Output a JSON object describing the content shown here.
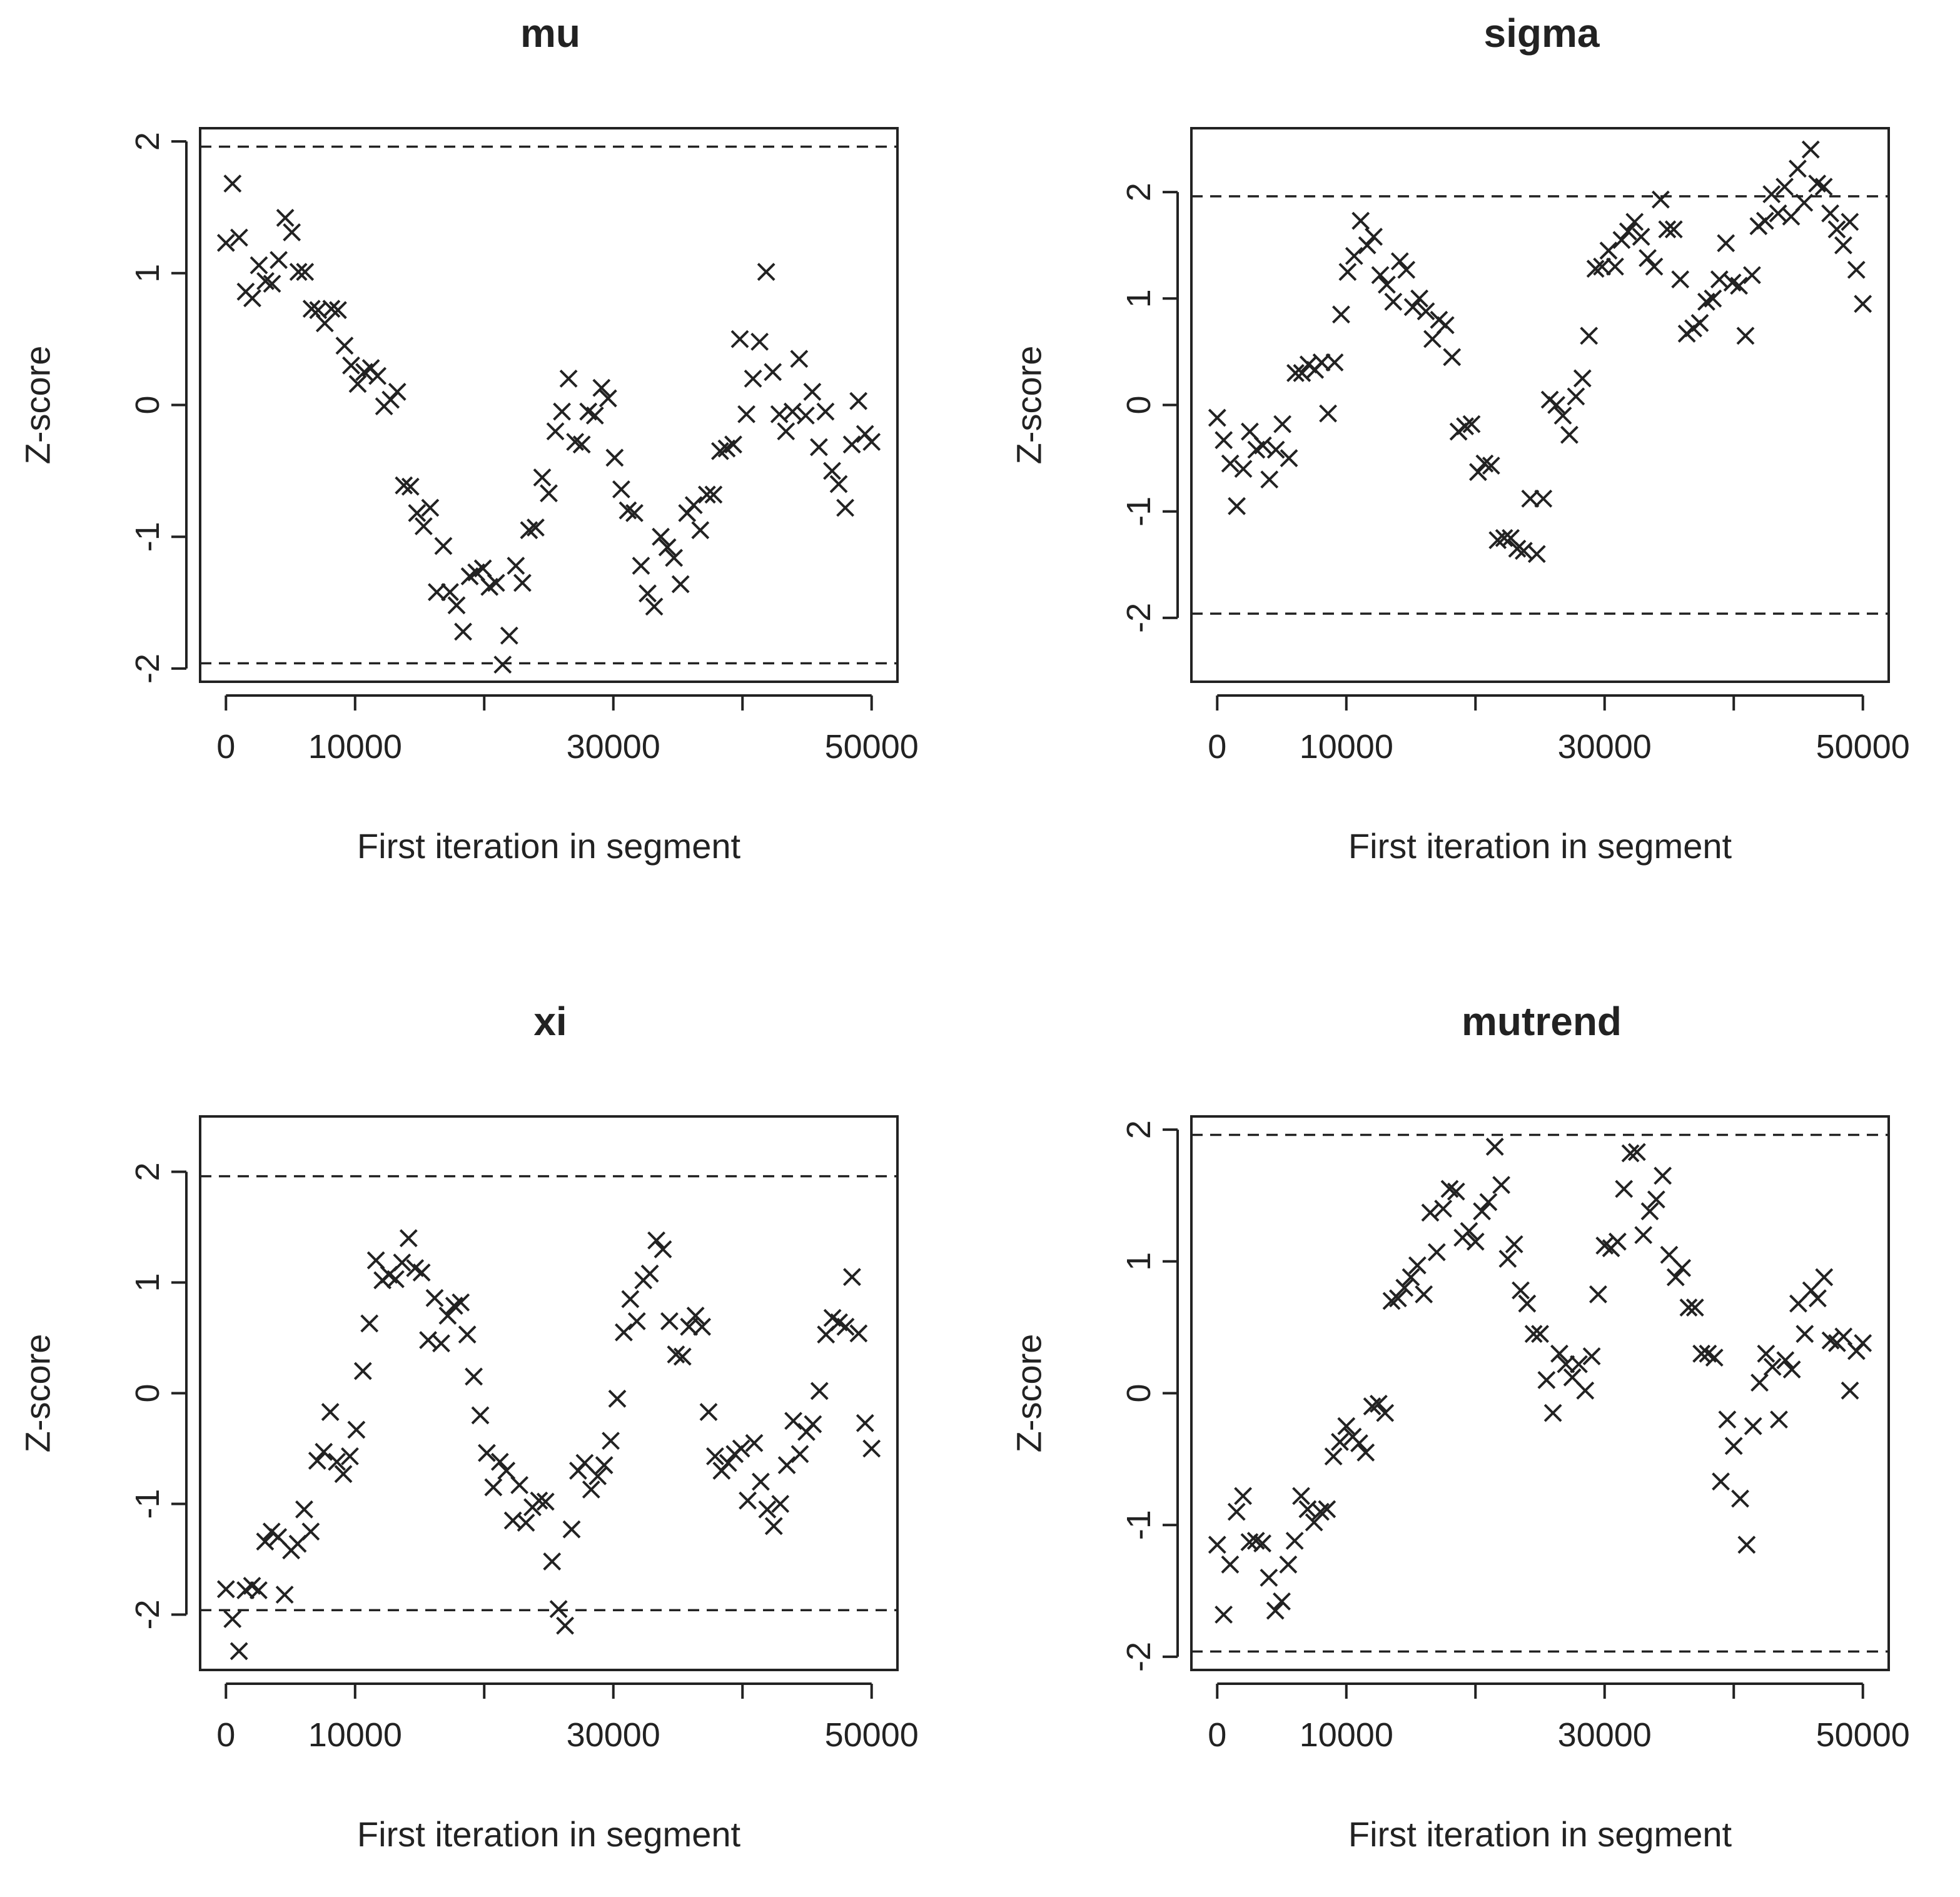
{
  "chart_data": [
    {
      "type": "scatter",
      "title": "mu",
      "xlabel": "First iteration in segment",
      "ylabel": "Z-score",
      "xlim": [
        -2000,
        52000
      ],
      "ylim": [
        -2.1,
        2.1
      ],
      "xticks": [
        0,
        10000,
        20000,
        30000,
        40000,
        50000
      ],
      "xtick_labels": [
        "0",
        "10000",
        "",
        "30000",
        "",
        "50000"
      ],
      "yticks": [
        -2,
        -1,
        0,
        1,
        2
      ],
      "ytick_labels": [
        "-2",
        "-1",
        "0",
        "1",
        "2"
      ],
      "hlines": [
        1.96,
        -1.96
      ],
      "marker": "x",
      "y": [
        1.23,
        1.68,
        1.27,
        0.86,
        0.81,
        1.06,
        0.94,
        0.92,
        1.1,
        1.42,
        1.31,
        1.01,
        1.01,
        0.73,
        0.72,
        0.62,
        0.73,
        0.72,
        0.45,
        0.3,
        0.16,
        0.25,
        0.28,
        0.22,
        -0.01,
        0.04,
        0.1,
        -0.61,
        -0.62,
        -0.82,
        -0.92,
        -0.78,
        -1.42,
        -1.07,
        -1.42,
        -1.52,
        -1.72,
        -1.3,
        -1.27,
        -1.24,
        -1.38,
        -1.35,
        -1.97,
        -1.75,
        -1.22,
        -1.35,
        -0.95,
        -0.93,
        -0.55,
        -0.67,
        -0.2,
        -0.05,
        0.2,
        -0.28,
        -0.3,
        -0.05,
        -0.08,
        0.13,
        0.05,
        -0.4,
        -0.64,
        -0.8,
        -0.82,
        -1.22,
        -1.43,
        -1.53,
        -1.0,
        -1.08,
        -1.16,
        -1.36,
        -0.82,
        -0.76,
        -0.95,
        -0.68,
        -0.68,
        -0.35,
        -0.33,
        -0.3,
        0.5,
        -0.07,
        0.2,
        0.48,
        1.01,
        0.25,
        -0.07,
        -0.2,
        -0.05,
        0.35,
        -0.08,
        0.1,
        -0.32,
        -0.05,
        -0.5,
        -0.6,
        -0.78,
        -0.3,
        0.03,
        -0.22,
        -0.28
      ]
    },
    {
      "type": "scatter",
      "title": "sigma",
      "xlabel": "First iteration in segment",
      "ylabel": "Z-score",
      "xlim": [
        -2000,
        52000
      ],
      "ylim": [
        -2.6,
        2.6
      ],
      "xticks": [
        0,
        10000,
        20000,
        30000,
        40000,
        50000
      ],
      "xtick_labels": [
        "0",
        "10000",
        "",
        "30000",
        "",
        "50000"
      ],
      "yticks": [
        -2,
        -1,
        0,
        1,
        2
      ],
      "ytick_labels": [
        "-2",
        "-1",
        "0",
        "1",
        "2"
      ],
      "hlines": [
        1.96,
        -1.96
      ],
      "marker": "x",
      "y": [
        -0.12,
        -0.33,
        -0.55,
        -0.95,
        -0.6,
        -0.25,
        -0.42,
        -0.38,
        -0.7,
        -0.42,
        -0.18,
        -0.5,
        0.3,
        0.3,
        0.38,
        0.33,
        0.4,
        -0.08,
        0.4,
        0.85,
        1.25,
        1.4,
        1.73,
        1.5,
        1.58,
        1.22,
        1.13,
        0.97,
        1.35,
        1.27,
        0.92,
        1.0,
        0.88,
        0.62,
        0.8,
        0.75,
        0.45,
        -0.25,
        -0.2,
        -0.18,
        -0.63,
        -0.55,
        -0.57,
        -1.27,
        -1.25,
        -1.25,
        -1.35,
        -1.37,
        -0.88,
        -1.4,
        -0.88,
        0.05,
        0.0,
        -0.1,
        -0.28,
        0.08,
        0.25,
        0.65,
        1.28,
        1.3,
        1.45,
        1.3,
        1.55,
        1.63,
        1.72,
        1.58,
        1.38,
        1.3,
        1.93,
        1.65,
        1.65,
        1.18,
        0.67,
        0.72,
        0.77,
        0.97,
        1.0,
        1.18,
        1.52,
        1.15,
        1.12,
        0.65,
        1.22,
        1.68,
        1.73,
        1.98,
        1.8,
        2.05,
        1.77,
        2.22,
        1.9,
        2.4,
        2.08,
        2.05,
        1.8,
        1.65,
        1.5,
        1.72,
        1.27,
        0.95
      ]
    },
    {
      "type": "scatter",
      "title": "xi",
      "xlabel": "First iteration in segment",
      "ylabel": "Z-score",
      "xlim": [
        -2000,
        52000
      ],
      "ylim": [
        -2.5,
        2.5
      ],
      "xticks": [
        0,
        10000,
        20000,
        30000,
        40000,
        50000
      ],
      "xtick_labels": [
        "0",
        "10000",
        "",
        "30000",
        "",
        "50000"
      ],
      "yticks": [
        -2,
        -1,
        0,
        1,
        2
      ],
      "ytick_labels": [
        "-2",
        "-1",
        "0",
        "1",
        "2"
      ],
      "hlines": [
        1.96,
        -1.96
      ],
      "marker": "x",
      "y": [
        -1.77,
        -2.04,
        -2.33,
        -1.78,
        -1.74,
        -1.78,
        -1.34,
        -1.25,
        -1.3,
        -1.82,
        -1.42,
        -1.36,
        -1.05,
        -1.25,
        -0.61,
        -0.53,
        -0.17,
        -0.62,
        -0.73,
        -0.57,
        -0.33,
        0.2,
        0.63,
        1.2,
        1.02,
        1.07,
        1.03,
        1.18,
        1.4,
        1.13,
        1.09,
        0.48,
        0.86,
        0.45,
        0.7,
        0.79,
        0.82,
        0.53,
        0.15,
        -0.2,
        -0.54,
        -0.85,
        -0.62,
        -0.7,
        -1.15,
        -0.83,
        -1.17,
        -1.03,
        -0.97,
        -0.98,
        -1.52,
        -1.95,
        -2.1,
        -1.23,
        -0.7,
        -0.63,
        -0.87,
        -0.75,
        -0.65,
        -0.43,
        -0.05,
        0.55,
        0.85,
        0.65,
        1.02,
        1.08,
        1.38,
        1.3,
        0.65,
        0.35,
        0.33,
        0.6,
        0.7,
        0.6,
        -0.17,
        -0.57,
        -0.7,
        -0.63,
        -0.55,
        -0.5,
        -0.97,
        -0.45,
        -0.8,
        -1.05,
        -1.2,
        -1.0,
        -0.65,
        -0.25,
        -0.55,
        -0.35,
        -0.28,
        0.02,
        0.53,
        0.68,
        0.64,
        0.6,
        1.05,
        0.54,
        -0.27,
        -0.5
      ]
    },
    {
      "type": "scatter",
      "title": "mutrend",
      "xlabel": "First iteration in segment",
      "ylabel": "Z-score",
      "xlim": [
        -2000,
        52000
      ],
      "ylim": [
        -2.1,
        2.1
      ],
      "xticks": [
        0,
        10000,
        20000,
        30000,
        40000,
        50000
      ],
      "xtick_labels": [
        "0",
        "10000",
        "",
        "30000",
        "",
        "50000"
      ],
      "yticks": [
        -2,
        -1,
        0,
        1,
        2
      ],
      "ytick_labels": [
        "-2",
        "-1",
        "0",
        "1",
        "2"
      ],
      "hlines": [
        1.96,
        -1.96
      ],
      "marker": "x",
      "y": [
        -1.15,
        -1.68,
        -1.3,
        -0.9,
        -0.78,
        -1.13,
        -1.12,
        -1.14,
        -1.4,
        -1.65,
        -1.58,
        -1.3,
        -1.12,
        -0.78,
        -0.88,
        -0.98,
        -0.9,
        -0.88,
        -0.48,
        -0.37,
        -0.25,
        -0.33,
        -0.38,
        -0.45,
        -0.1,
        -0.08,
        -0.15,
        0.7,
        0.72,
        0.8,
        0.88,
        0.97,
        0.75,
        1.37,
        1.07,
        1.4,
        1.55,
        1.53,
        1.18,
        1.23,
        1.15,
        1.38,
        1.45,
        1.87,
        1.58,
        1.02,
        1.13,
        0.78,
        0.68,
        0.45,
        0.45,
        0.1,
        -0.15,
        0.3,
        0.22,
        0.12,
        0.22,
        0.02,
        0.28,
        0.75,
        1.12,
        1.1,
        1.15,
        1.55,
        1.82,
        1.83,
        1.2,
        1.38,
        1.47,
        1.65,
        1.05,
        0.88,
        0.95,
        0.65,
        0.65,
        0.3,
        0.3,
        0.27,
        -0.67,
        -0.2,
        -0.4,
        -0.8,
        -1.15,
        -0.25,
        0.08,
        0.3,
        0.2,
        -0.2,
        0.25,
        0.18,
        0.68,
        0.45,
        0.78,
        0.72,
        0.88,
        0.4,
        0.38,
        0.43,
        0.02,
        0.32,
        0.38
      ]
    }
  ]
}
